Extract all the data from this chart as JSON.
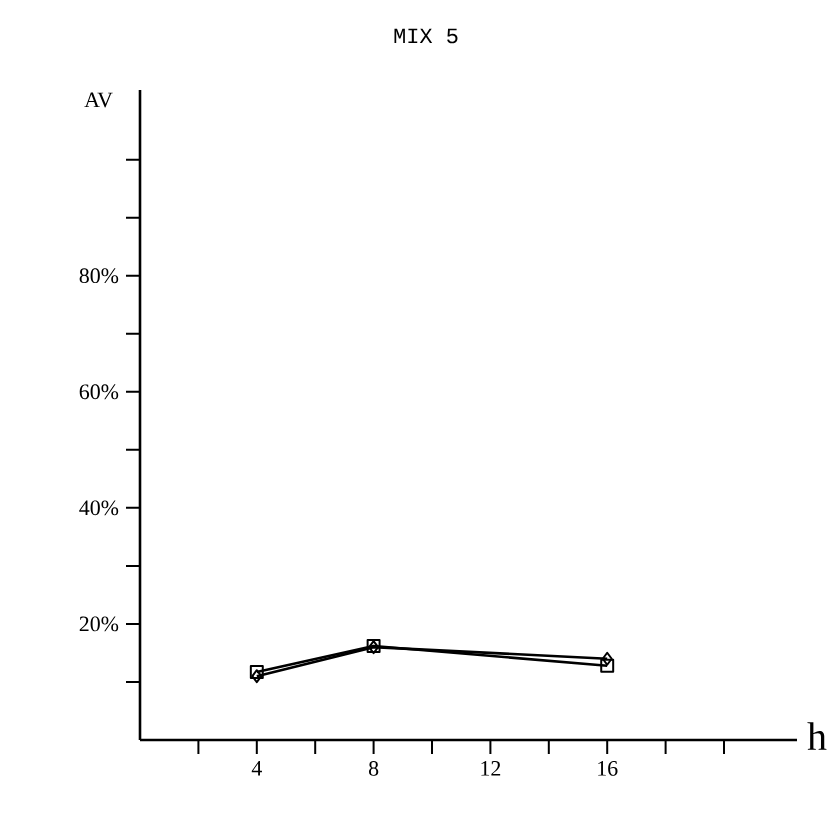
{
  "chart_data": {
    "type": "line",
    "title": "MIX 5",
    "xlabel": "h",
    "ylabel": "AV",
    "x": [
      4,
      8,
      16
    ],
    "series": [
      {
        "color": "#000000",
        "marker": "square",
        "values": [
          11.7,
          16.2,
          12.8
        ]
      },
      {
        "color": "#000000",
        "marker": "diamond",
        "values": [
          11,
          16,
          14
        ]
      }
    ],
    "xlim": [
      0,
      22.5
    ],
    "ylim": [
      0,
      112
    ],
    "xticks": [
      {
        "value": 2,
        "label": null
      },
      4,
      {
        "value": 6,
        "label": null
      },
      8,
      {
        "value": 10,
        "label": null
      },
      12,
      {
        "value": 14,
        "label": null
      },
      16,
      {
        "value": 18,
        "label": null
      },
      {
        "value": 20,
        "label": null
      }
    ],
    "yticks": [
      {
        "value": 10,
        "label": null
      },
      {
        "value": 20,
        "label": "20%"
      },
      {
        "value": 30,
        "label": null
      },
      {
        "value": 40,
        "label": "40%"
      },
      {
        "value": 50,
        "label": null
      },
      {
        "value": 60,
        "label": "60%"
      },
      {
        "value": 70,
        "label": null
      },
      {
        "value": 80,
        "label": "80%"
      },
      {
        "value": 90,
        "label": null
      },
      {
        "value": 100,
        "label": null
      }
    ],
    "grid": false,
    "line_style": "solid"
  }
}
